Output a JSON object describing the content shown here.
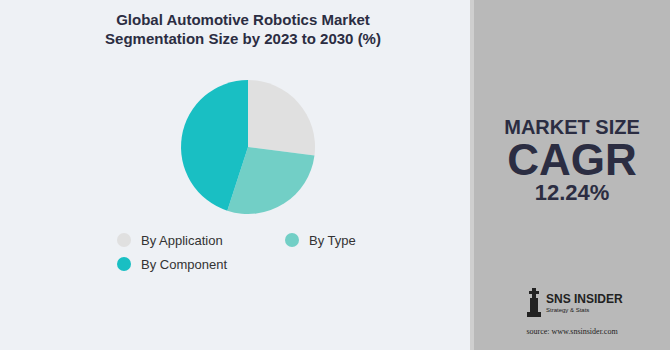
{
  "chart_data": {
    "type": "pie",
    "title": "Global Automotive Robotics Market Segmentation Size by 2023 to 2030 (%)",
    "categories": [
      "By Application",
      "By Type",
      "By Component"
    ],
    "values": [
      27,
      28,
      45
    ],
    "colors": [
      "#e0e0e0",
      "#72cfc6",
      "#19bfc3"
    ],
    "legend": "bottom"
  },
  "panel": {
    "heading": "MARKET SIZE",
    "metric": "CAGR",
    "value": "12.24%"
  },
  "logo": {
    "name": "SNS INSIDER",
    "tagline": "Strategy & Stats",
    "source": "source: www.snsinsider.com"
  }
}
